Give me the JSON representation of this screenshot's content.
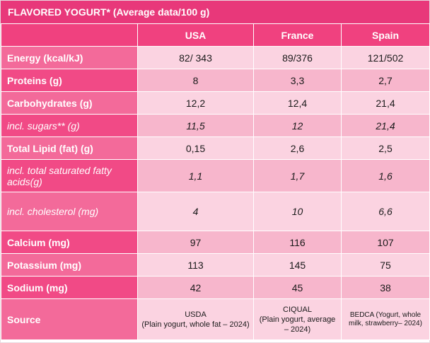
{
  "title": "FLAVORED YOGURT* (Average data/100 g)",
  "columns": [
    "USA",
    "France",
    "Spain"
  ],
  "rows": [
    {
      "label": "Energy (kcal/kJ)",
      "sub": false,
      "values": [
        "82/ 343",
        "89/376",
        "121/502"
      ]
    },
    {
      "label": "Proteins (g)",
      "sub": false,
      "values": [
        "8",
        "3,3",
        "2,7"
      ]
    },
    {
      "label": "Carbohydrates (g)",
      "sub": false,
      "values": [
        "12,2",
        "12,4",
        "21,4"
      ]
    },
    {
      "label": "incl. sugars** (g)",
      "sub": true,
      "values": [
        "11,5",
        "12",
        "21,4"
      ]
    },
    {
      "label": "Total Lipid (fat) (g)",
      "sub": false,
      "values": [
        "0,15",
        "2,6",
        "2,5"
      ]
    },
    {
      "label": "incl. total saturated fatty acids(g)",
      "sub": true,
      "values": [
        "1,1",
        "1,7",
        "1,6"
      ]
    },
    {
      "label": "incl. cholesterol (mg)",
      "sub": true,
      "values": [
        "4",
        "10",
        "6,6"
      ]
    },
    {
      "label": "Calcium (mg)",
      "sub": false,
      "values": [
        "97",
        "116",
        "107"
      ]
    },
    {
      "label": "Potassium (mg)",
      "sub": false,
      "values": [
        "113",
        "145",
        "75"
      ]
    },
    {
      "label": "Sodium (mg)",
      "sub": false,
      "values": [
        "42",
        "45",
        "38"
      ]
    }
  ],
  "source": {
    "label": "Source",
    "values": [
      "USDA\n(Plain yogurt, whole fat – 2024)",
      "CIQUAL\n(Plain yogurt, average – 2024)",
      "BEDCA (Yogurt, whole milk, strawberry– 2024)"
    ]
  }
}
